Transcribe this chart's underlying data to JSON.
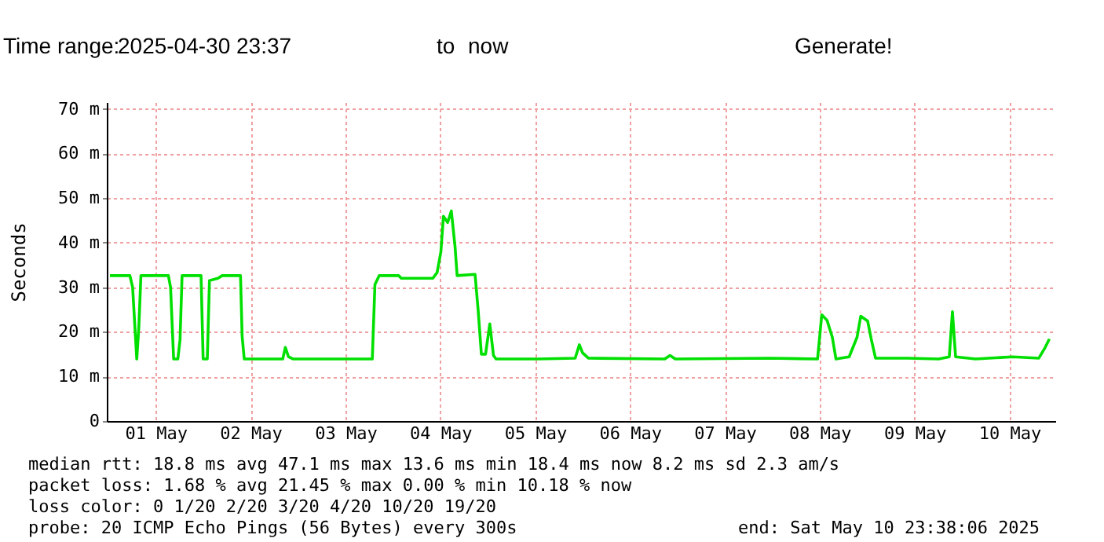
{
  "chart_data": {
    "type": "line",
    "ylabel": "Seconds",
    "x": [
      "2025-05-01T00:24",
      "2025-05-01T05:28",
      "2025-05-01T06:09",
      "2025-05-01T07:12",
      "2025-05-01T07:44",
      "2025-05-01T08:15",
      "2025-05-01T15:12",
      "2025-05-01T15:45",
      "2025-05-01T16:32",
      "2025-05-01T17:36",
      "2025-05-01T18:09",
      "2025-05-01T18:40",
      "2025-05-01T23:28",
      "2025-05-02T00:00",
      "2025-05-02T01:03",
      "2025-05-02T01:36",
      "2025-05-02T03:45",
      "2025-05-02T04:48",
      "2025-05-02T09:27",
      "2025-05-02T09:52",
      "2025-05-02T10:24",
      "2025-05-02T20:08",
      "2025-05-02T20:48",
      "2025-05-02T21:36",
      "2025-05-02T22:48",
      "2025-05-03T18:48",
      "2025-05-03T19:28",
      "2025-05-03T20:33",
      "2025-05-04T01:28",
      "2025-05-04T02:08",
      "2025-05-04T04:08",
      "2025-05-04T10:08",
      "2025-05-04T11:12",
      "2025-05-04T12:09",
      "2025-05-04T12:48",
      "2025-05-04T13:52",
      "2025-05-04T14:48",
      "2025-05-04T15:45",
      "2025-05-04T16:16",
      "2025-05-04T20:48",
      "2025-05-04T21:36",
      "2025-05-04T22:24",
      "2025-05-04T23:28",
      "2025-05-05T00:32",
      "2025-05-05T01:28",
      "2025-05-05T02:08",
      "2025-05-05T12:48",
      "2025-05-05T22:08",
      "2025-05-05T23:12",
      "2025-05-06T00:00",
      "2025-05-06T01:28",
      "2025-05-06T20:48",
      "2025-05-06T22:08",
      "2025-05-06T23:28",
      "2025-05-07T23:28",
      "2025-05-08T11:28",
      "2025-05-08T12:32",
      "2025-05-08T13:52",
      "2025-05-08T15:12",
      "2025-05-08T16:08",
      "2025-05-08T19:28",
      "2025-05-08T21:28",
      "2025-05-08T22:24",
      "2025-05-09T00:09",
      "2025-05-09T01:03",
      "2025-05-09T02:08",
      "2025-05-09T10:08",
      "2025-05-09T18:08",
      "2025-05-09T20:48",
      "2025-05-09T21:36",
      "2025-05-09T22:24",
      "2025-05-10T03:28",
      "2025-05-10T12:48",
      "2025-05-10T19:28",
      "2025-05-10T21:04",
      "2025-05-10T22:08"
    ],
    "series": [
      {
        "color": "#00e000",
        "values": [
          32.6,
          32.6,
          30,
          13.9,
          21.2,
          32.6,
          32.6,
          30,
          13.9,
          13.9,
          18.2,
          32.6,
          32.6,
          13.9,
          13.9,
          31.5,
          32,
          32.6,
          32.6,
          19,
          13.9,
          13.9,
          16.5,
          14.4,
          13.9,
          13.9,
          30.6,
          32.6,
          32.6,
          32,
          32,
          32,
          33.3,
          37.9,
          45.9,
          44.5,
          47.1,
          39,
          32.6,
          32.9,
          24.7,
          15,
          15,
          21.8,
          14.7,
          13.9,
          13.9,
          14.1,
          17.1,
          15.3,
          14.1,
          13.9,
          14.7,
          13.9,
          14.1,
          13.9,
          23.8,
          22.6,
          18.8,
          13.9,
          14.4,
          18.8,
          23.5,
          22.4,
          18.4,
          14.1,
          14.1,
          13.9,
          14.4,
          24.5,
          14.4,
          13.9,
          14.4,
          14.1,
          16.5,
          18.4
        ]
      }
    ],
    "xlim": [
      "2025-04-30T23:37",
      "2025-05-10T23:38"
    ],
    "xticks": [
      {
        "value": "2025-05-01T12:00",
        "label": "01 May"
      },
      {
        "value": "2025-05-02T12:00",
        "label": "02 May"
      },
      {
        "value": "2025-05-03T12:00",
        "label": "03 May"
      },
      {
        "value": "2025-05-04T12:00",
        "label": "04 May"
      },
      {
        "value": "2025-05-05T12:00",
        "label": "05 May"
      },
      {
        "value": "2025-05-06T12:00",
        "label": "06 May"
      },
      {
        "value": "2025-05-07T12:00",
        "label": "07 May"
      },
      {
        "value": "2025-05-08T12:00",
        "label": "08 May"
      },
      {
        "value": "2025-05-09T12:00",
        "label": "09 May"
      },
      {
        "value": "2025-05-10T12:00",
        "label": "10 May"
      }
    ],
    "ylim": [
      0,
      71.5
    ],
    "yticks": [
      0,
      {
        "value": 10,
        "label": "10 m"
      },
      {
        "value": 20,
        "label": "20 m"
      },
      {
        "value": 30,
        "label": "30 m"
      },
      {
        "value": 40,
        "label": "40 m"
      },
      {
        "value": 50,
        "label": "50 m"
      },
      {
        "value": 60,
        "label": "60 m"
      },
      {
        "value": 70,
        "label": "70 m"
      }
    ],
    "grid": true,
    "marker": "none",
    "line_style": "solid",
    "annotations": [
      "Time range:",
      "2025-04-30 23:37",
      "to",
      "now",
      "Generate!",
      "median rtt:  18.8 ms avg  47.1 ms max  13.6 ms min  18.4 ms now  8.2 ms sd  2.3   am/s",
      "packet loss: 1.68 % avg  21.45 % max  0.00 % min  10.18 % now",
      "loss color:  0  1/20  2/20  3/20  4/20  10/20  19/20",
      "probe:       20 ICMP Echo Pings (56 Bytes) every 300s",
      "end: Sat May 10 23:38:06 2025"
    ]
  }
}
